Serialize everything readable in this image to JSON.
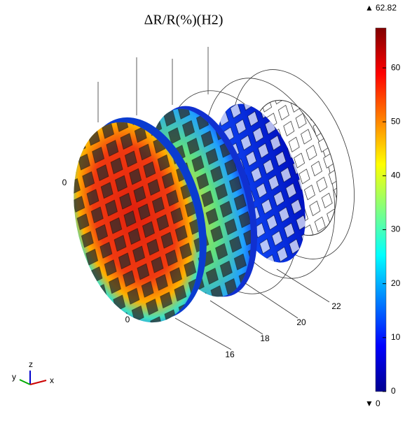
{
  "chart_data": {
    "type": "surface-3d",
    "title": "ΔR/R(%)(H2)",
    "colormap": "jet",
    "clim": [
      0,
      67.4
    ],
    "cticks": [
      0,
      10,
      20,
      30,
      40,
      50,
      60
    ],
    "max": 62.82,
    "min": 0,
    "x_axis_ticks": [
      16,
      18,
      20,
      22
    ],
    "y_axis_ticks": [
      0
    ],
    "z_axis_ticks": [
      0
    ],
    "triad": [
      "x",
      "y",
      "z"
    ]
  }
}
